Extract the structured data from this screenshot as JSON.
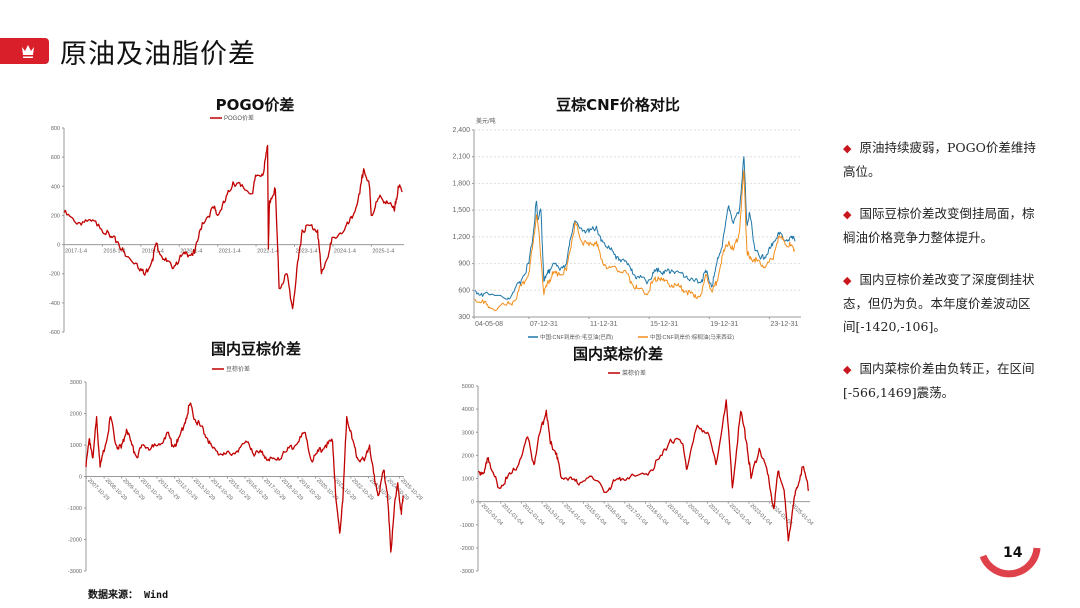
{
  "header": {
    "title": "原油及油脂价差",
    "icon": "crown-icon",
    "accent": "#d9202a"
  },
  "source": "数据来源： Wind",
  "page_number": "14",
  "bullets": [
    "原油持续疲弱，POGO价差维持高位。",
    "国际豆棕价差改变倒挂局面，棕榈油价格竞争力整体提升。",
    "国内豆棕价差改变了深度倒挂状态，但仍为负。本年度价差波动区间[-1420,-106]。",
    "国内菜棕价差由负转正，在区间[-566,1469]震荡。"
  ],
  "chart_data": [
    {
      "type": "line",
      "title": "POGO价差",
      "xlabel": "",
      "ylabel": "",
      "ylim": [
        -600,
        800
      ],
      "yticks": [
        -600,
        -400,
        -200,
        0,
        200,
        400,
        600,
        800
      ],
      "xlim": [
        2017.0,
        2025.85
      ],
      "xticks": [
        {
          "v": 2017.0,
          "label": "2017-1-4"
        },
        {
          "v": 2018.0,
          "label": "2018-1-4"
        },
        {
          "v": 2019.0,
          "label": "2019-1-4"
        },
        {
          "v": 2020.0,
          "label": "2020-1-4"
        },
        {
          "v": 2021.0,
          "label": "2021-1-4"
        },
        {
          "v": 2022.0,
          "label": "2022-1-4"
        },
        {
          "v": 2023.0,
          "label": "2023-1-4"
        },
        {
          "v": 2024.0,
          "label": "2024-1-4"
        },
        {
          "v": 2025.0,
          "label": "2025-1-4"
        }
      ],
      "legend": "top-center",
      "series": [
        {
          "name": "POGO价差",
          "color": "#c00000",
          "x": [
            2017.0,
            2017.3,
            2017.6,
            2017.9,
            2018.2,
            2018.4,
            2018.6,
            2018.9,
            2019.1,
            2019.3,
            2019.4,
            2019.6,
            2019.8,
            2020.0,
            2020.2,
            2020.4,
            2020.6,
            2020.9,
            2021.0,
            2021.2,
            2021.4,
            2021.6,
            2021.9,
            2022.0,
            2022.2,
            2022.3,
            2022.32,
            2022.35,
            2022.5,
            2022.6,
            2022.8,
            2022.95,
            2023.1,
            2023.2,
            2023.4,
            2023.6,
            2023.7,
            2023.9,
            2024.0,
            2024.3,
            2024.5,
            2024.7,
            2024.8,
            2024.95,
            2025.0,
            2025.2,
            2025.4,
            2025.6,
            2025.7,
            2025.8
          ],
          "y": [
            220,
            150,
            160,
            140,
            50,
            20,
            -80,
            -130,
            -210,
            -100,
            10,
            -100,
            -150,
            -100,
            -60,
            -60,
            150,
            250,
            200,
            300,
            430,
            400,
            350,
            470,
            500,
            680,
            -30,
            300,
            380,
            -300,
            -200,
            -440,
            -100,
            100,
            130,
            100,
            -200,
            -50,
            50,
            100,
            180,
            350,
            520,
            400,
            200,
            320,
            300,
            230,
            400,
            360
          ]
        }
      ]
    },
    {
      "type": "line",
      "title": "豆棕CNF价格对比",
      "unit": "美元/吨",
      "ylim": [
        300,
        2400
      ],
      "yticks": [
        300,
        600,
        900,
        1200,
        1500,
        1800,
        2100,
        2400
      ],
      "ytick_labels": [
        "300",
        "600",
        "900",
        "1,200",
        "1,500",
        "1,800",
        "2,100",
        "2,400"
      ],
      "grid": true,
      "xlim": [
        2004.35,
        2026.1
      ],
      "xticks": [
        {
          "v": 2004.35,
          "label": "04-05-08"
        },
        {
          "v": 2008.0,
          "label": "07-12-31"
        },
        {
          "v": 2012.0,
          "label": "11-12-31"
        },
        {
          "v": 2016.0,
          "label": "15-12-31"
        },
        {
          "v": 2020.0,
          "label": "19-12-31"
        },
        {
          "v": 2024.0,
          "label": "23-12-31"
        }
      ],
      "legend": "bottom",
      "series": [
        {
          "name": "中国:CNF到岸价:毛豆油(巴西)",
          "color": "#1f77a8",
          "x": [
            2004.4,
            2005,
            2006.5,
            2007,
            2007.5,
            2008,
            2008.3,
            2008.5,
            2008.6,
            2008.8,
            2009.0,
            2009.3,
            2009.6,
            2010.0,
            2010.5,
            2010.8,
            2011.0,
            2011.5,
            2012.0,
            2012.5,
            2012.8,
            2013.3,
            2013.8,
            2014.3,
            2014.8,
            2015.2,
            2015.8,
            2016.2,
            2016.6,
            2017.0,
            2017.5,
            2018.0,
            2018.5,
            2019.0,
            2019.5,
            2019.8,
            2020.2,
            2020.5,
            2020.9,
            2021.3,
            2021.6,
            2022.0,
            2022.3,
            2022.5,
            2022.7,
            2023.0,
            2023.4,
            2023.8,
            2024.2,
            2024.6,
            2025.0,
            2025.4,
            2025.7
          ],
          "y": [
            600,
            560,
            500,
            580,
            720,
            900,
            1250,
            1600,
            1400,
            1500,
            700,
            800,
            900,
            850,
            900,
            1200,
            1350,
            1300,
            1250,
            1320,
            1150,
            1100,
            950,
            950,
            820,
            750,
            700,
            760,
            850,
            790,
            830,
            800,
            760,
            700,
            720,
            800,
            650,
            900,
            1150,
            1550,
            1350,
            1500,
            2100,
            1350,
            1450,
            1100,
            950,
            1000,
            1100,
            1250,
            1150,
            1200,
            1150
          ]
        },
        {
          "name": "中国:CNF到岸价:棕榈油(马来西亚)",
          "color": "#f28e1c",
          "x": [
            2004.4,
            2005,
            2005.5,
            2006.5,
            2007,
            2007.5,
            2008,
            2008.3,
            2008.5,
            2008.7,
            2009.0,
            2009.3,
            2009.6,
            2010.0,
            2010.5,
            2010.9,
            2011.1,
            2011.5,
            2012.0,
            2012.5,
            2012.8,
            2013.3,
            2013.8,
            2014.3,
            2014.8,
            2015.2,
            2015.8,
            2016.2,
            2016.6,
            2017.0,
            2017.5,
            2018.0,
            2018.5,
            2019.0,
            2019.5,
            2019.8,
            2020.2,
            2020.5,
            2020.9,
            2021.3,
            2021.6,
            2022.0,
            2022.3,
            2022.5,
            2022.7,
            2023.0,
            2023.4,
            2023.8,
            2024.2,
            2024.6,
            2025.0,
            2025.4,
            2025.7
          ],
          "y": [
            500,
            450,
            400,
            430,
            480,
            650,
            800,
            1150,
            1450,
            1200,
            550,
            700,
            780,
            800,
            820,
            1200,
            1350,
            1150,
            1100,
            1150,
            950,
            850,
            850,
            820,
            700,
            620,
            560,
            680,
            750,
            700,
            660,
            640,
            590,
            520,
            560,
            780,
            580,
            700,
            1000,
            1150,
            1050,
            1250,
            1950,
            1050,
            950,
            950,
            900,
            880,
            950,
            1200,
            1150,
            1100,
            1050
          ]
        }
      ]
    },
    {
      "type": "line",
      "title": "国内豆棕价差",
      "ylim": [
        -3000,
        3000
      ],
      "yticks": [
        -3000,
        -2000,
        -1000,
        0,
        1000,
        2000,
        3000
      ],
      "xlim": [
        2007.8,
        2025.85
      ],
      "xticks": [
        {
          "v": 2007.83,
          "label": "2007-10-29"
        },
        {
          "v": 2008.83,
          "label": "2008-10-29"
        },
        {
          "v": 2009.83,
          "label": "2009-10-29"
        },
        {
          "v": 2010.83,
          "label": "2010-10-29"
        },
        {
          "v": 2011.83,
          "label": "2011-10-29"
        },
        {
          "v": 2012.83,
          "label": "2012-10-29"
        },
        {
          "v": 2013.83,
          "label": "2013-10-29"
        },
        {
          "v": 2014.83,
          "label": "2014-10-29"
        },
        {
          "v": 2015.83,
          "label": "2015-10-29"
        },
        {
          "v": 2016.83,
          "label": "2016-10-29"
        },
        {
          "v": 2017.83,
          "label": "2017-10-29"
        },
        {
          "v": 2018.83,
          "label": "2018-10-29"
        },
        {
          "v": 2019.83,
          "label": "2019-10-29"
        },
        {
          "v": 2020.83,
          "label": "2020-10-29"
        },
        {
          "v": 2021.83,
          "label": "2021-10-29"
        },
        {
          "v": 2022.83,
          "label": "2022-10-29"
        },
        {
          "v": 2023.83,
          "label": "2023-10-29"
        },
        {
          "v": 2024.83,
          "label": "2024-10-29"
        },
        {
          "v": 2025.6,
          "label": "2025-10-29"
        }
      ],
      "legend": "top-center",
      "series": [
        {
          "name": "豆棕价差",
          "color": "#c00000",
          "x": [
            2007.8,
            2008.0,
            2008.2,
            2008.4,
            2008.6,
            2008.9,
            2009.2,
            2009.5,
            2009.8,
            2010.1,
            2010.4,
            2010.7,
            2011.0,
            2011.5,
            2012.0,
            2012.4,
            2012.7,
            2013.0,
            2013.4,
            2013.7,
            2014.0,
            2014.3,
            2014.7,
            2015.0,
            2015.5,
            2016.0,
            2016.5,
            2017.0,
            2017.4,
            2017.8,
            2018.2,
            2018.7,
            2019.2,
            2019.7,
            2020.2,
            2020.6,
            2021.0,
            2021.4,
            2021.8,
            2022.0,
            2022.2,
            2022.4,
            2022.6,
            2022.9,
            2023.2,
            2023.6,
            2023.9,
            2024.2,
            2024.4,
            2024.7,
            2024.9,
            2025.1,
            2025.3,
            2025.5,
            2025.7,
            2025.8
          ],
          "y": [
            300,
            1200,
            600,
            1900,
            300,
            1000,
            1900,
            1000,
            900,
            1500,
            1000,
            600,
            1000,
            900,
            1000,
            1400,
            1000,
            1100,
            1700,
            2300,
            1800,
            1600,
            1200,
            900,
            700,
            700,
            900,
            1100,
            700,
            800,
            500,
            600,
            800,
            1000,
            1400,
            500,
            800,
            1000,
            1100,
            -800,
            -1800,
            -500,
            1900,
            1200,
            600,
            500,
            1000,
            -200,
            -600,
            200,
            -500,
            -2400,
            -1000,
            -200,
            -1200,
            -600
          ]
        }
      ]
    },
    {
      "type": "line",
      "title": "国内菜棕价差",
      "ylim": [
        -3000,
        5000
      ],
      "yticks": [
        -3000,
        -2000,
        -1000,
        0,
        1000,
        2000,
        3000,
        4000,
        5000
      ],
      "xlim": [
        2009.9,
        2025.95
      ],
      "xticks": [
        {
          "v": 2010.0,
          "label": "2010-01-04"
        },
        {
          "v": 2011.0,
          "label": "2011-01-04"
        },
        {
          "v": 2012.0,
          "label": "2012-01-04"
        },
        {
          "v": 2013.0,
          "label": "2013-01-04"
        },
        {
          "v": 2014.0,
          "label": "2014-01-04"
        },
        {
          "v": 2015.0,
          "label": "2015-01-04"
        },
        {
          "v": 2016.0,
          "label": "2016-01-04"
        },
        {
          "v": 2017.0,
          "label": "2017-01-04"
        },
        {
          "v": 2018.0,
          "label": "2018-01-04"
        },
        {
          "v": 2019.0,
          "label": "2019-01-04"
        },
        {
          "v": 2020.0,
          "label": "2020-01-04"
        },
        {
          "v": 2021.0,
          "label": "2021-01-04"
        },
        {
          "v": 2022.0,
          "label": "2022-01-04"
        },
        {
          "v": 2023.0,
          "label": "2023-01-04"
        },
        {
          "v": 2024.0,
          "label": "2024-01-04"
        },
        {
          "v": 2025.0,
          "label": "2025-01-04"
        }
      ],
      "legend": "top-center",
      "series": [
        {
          "name": "菜棕价差",
          "color": "#c00000",
          "x": [
            2009.9,
            2010.2,
            2010.4,
            2010.6,
            2010.9,
            2011.3,
            2011.8,
            2012.3,
            2012.6,
            2012.9,
            2013.2,
            2013.4,
            2013.7,
            2013.9,
            2014.3,
            2014.7,
            2015.3,
            2016.1,
            2016.5,
            2016.9,
            2017.5,
            2018.2,
            2018.8,
            2019.2,
            2019.8,
            2020.0,
            2020.5,
            2021.0,
            2021.4,
            2021.9,
            2022.2,
            2022.6,
            2022.9,
            2023.1,
            2023.5,
            2023.9,
            2024.2,
            2024.4,
            2024.7,
            2024.9,
            2025.1,
            2025.3,
            2025.6,
            2025.9
          ],
          "y": [
            1300,
            1250,
            1900,
            1300,
            600,
            1000,
            1500,
            2800,
            1600,
            3000,
            3950,
            2500,
            2100,
            1100,
            1000,
            800,
            1100,
            400,
            900,
            1000,
            1100,
            1300,
            2000,
            2700,
            2500,
            1400,
            3300,
            3000,
            1600,
            4400,
            600,
            3900,
            2500,
            1000,
            2300,
            1200,
            -300,
            1300,
            500,
            -1700,
            -400,
            600,
            1500,
            500
          ]
        }
      ]
    }
  ]
}
